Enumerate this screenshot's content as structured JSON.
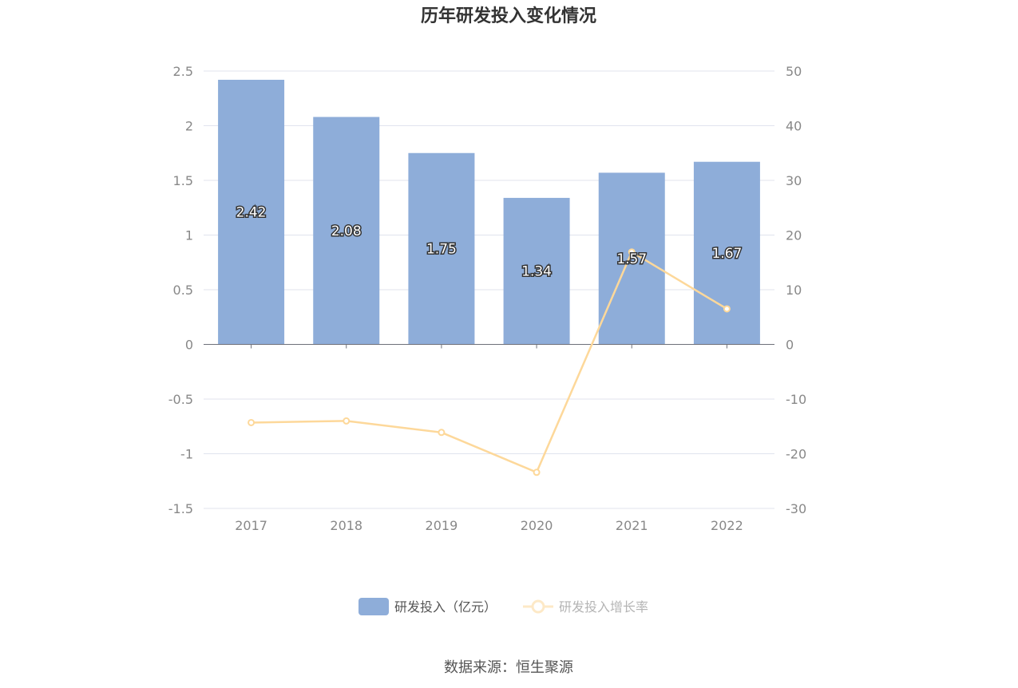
{
  "chart_data": {
    "type": "bar+line",
    "title": "历年研发投入变化情况",
    "categories": [
      "2017",
      "2018",
      "2019",
      "2020",
      "2021",
      "2022"
    ],
    "series": [
      {
        "name": "研发投入（亿元）",
        "type": "bar",
        "axis": "left",
        "values": [
          2.42,
          2.08,
          1.75,
          1.34,
          1.57,
          1.67
        ],
        "labels": [
          "2.42",
          "2.08",
          "1.75",
          "1.34",
          "1.57",
          "1.67"
        ],
        "color": "#8eadd9"
      },
      {
        "name": "研发投入增长率",
        "type": "line",
        "axis": "right",
        "values": [
          -14.3,
          -14.0,
          -16.1,
          -23.4,
          16.9,
          6.5
        ],
        "color": "#fdd89a"
      }
    ],
    "y_left": {
      "range": [
        -1.5,
        2.5
      ],
      "ticks": [
        "2.5",
        "2",
        "1.5",
        "1",
        "0.5",
        "0",
        "-0.5",
        "-1",
        "-1.5"
      ]
    },
    "y_right": {
      "range": [
        -30,
        50
      ],
      "ticks": [
        "50",
        "40",
        "30",
        "20",
        "10",
        "0",
        "-10",
        "-20",
        "-30"
      ]
    },
    "grid": true,
    "legend_position": "bottom"
  },
  "source": "数据来源：恒生聚源"
}
